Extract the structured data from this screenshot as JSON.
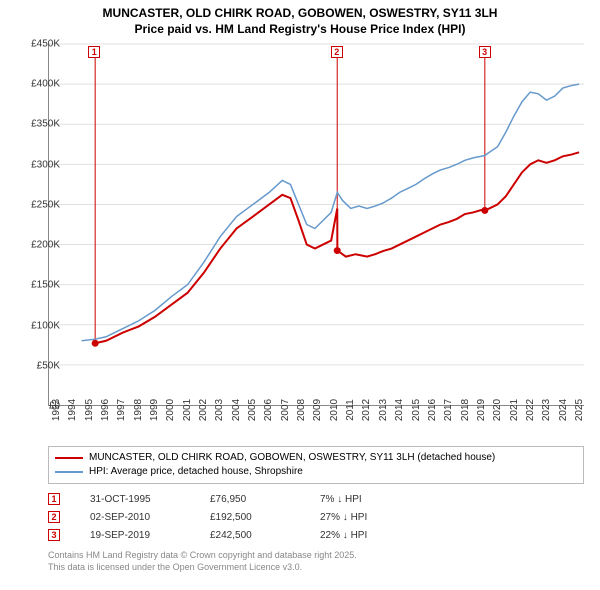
{
  "title": {
    "line1": "MUNCASTER, OLD CHIRK ROAD, GOBOWEN, OSWESTRY, SY11 3LH",
    "line2": "Price paid vs. HM Land Registry's House Price Index (HPI)"
  },
  "chart": {
    "type": "line",
    "background_color": "#ffffff",
    "grid_color": "#e0e0e0",
    "axis_color": "#888888",
    "x_years": [
      1993,
      1994,
      1995,
      1996,
      1997,
      1998,
      1999,
      2000,
      2001,
      2002,
      2003,
      2004,
      2005,
      2006,
      2007,
      2008,
      2009,
      2010,
      2011,
      2012,
      2013,
      2014,
      2015,
      2016,
      2017,
      2018,
      2019,
      2020,
      2021,
      2022,
      2023,
      2024,
      2025
    ],
    "xlim": [
      1993,
      2025.8
    ],
    "ylim": [
      0,
      450000
    ],
    "ytick_step": 50000,
    "ytick_labels": [
      "£0",
      "£50K",
      "£100K",
      "£150K",
      "£200K",
      "£250K",
      "£300K",
      "£350K",
      "£400K",
      "£450K"
    ],
    "title_fontsize": 12,
    "label_fontsize": 10,
    "series": {
      "price_paid": {
        "color": "#cc0000",
        "line_width": 2,
        "points": [
          [
            1995.83,
            76950
          ],
          [
            1996.5,
            80000
          ],
          [
            1997.5,
            90000
          ],
          [
            1998.5,
            98000
          ],
          [
            1999.5,
            110000
          ],
          [
            2000.5,
            125000
          ],
          [
            2001.5,
            140000
          ],
          [
            2002.5,
            165000
          ],
          [
            2003.5,
            195000
          ],
          [
            2004.5,
            220000
          ],
          [
            2005.5,
            235000
          ],
          [
            2006.5,
            250000
          ],
          [
            2007.3,
            262000
          ],
          [
            2007.8,
            258000
          ],
          [
            2008.3,
            230000
          ],
          [
            2008.8,
            200000
          ],
          [
            2009.3,
            195000
          ],
          [
            2009.8,
            200000
          ],
          [
            2010.3,
            205000
          ],
          [
            2010.67,
            245000
          ],
          [
            2010.68,
            192500
          ],
          [
            2011.2,
            185000
          ],
          [
            2011.8,
            188000
          ],
          [
            2012.5,
            185000
          ],
          [
            2013.0,
            188000
          ],
          [
            2013.5,
            192000
          ],
          [
            2014.0,
            195000
          ],
          [
            2014.5,
            200000
          ],
          [
            2015.0,
            205000
          ],
          [
            2015.5,
            210000
          ],
          [
            2016.0,
            215000
          ],
          [
            2016.5,
            220000
          ],
          [
            2017.0,
            225000
          ],
          [
            2017.5,
            228000
          ],
          [
            2018.0,
            232000
          ],
          [
            2018.5,
            238000
          ],
          [
            2019.0,
            240000
          ],
          [
            2019.5,
            243000
          ],
          [
            2019.72,
            242500
          ],
          [
            2020.0,
            245000
          ],
          [
            2020.5,
            250000
          ],
          [
            2021.0,
            260000
          ],
          [
            2021.5,
            275000
          ],
          [
            2022.0,
            290000
          ],
          [
            2022.5,
            300000
          ],
          [
            2023.0,
            305000
          ],
          [
            2023.5,
            302000
          ],
          [
            2024.0,
            305000
          ],
          [
            2024.5,
            310000
          ],
          [
            2025.0,
            312000
          ],
          [
            2025.5,
            315000
          ]
        ]
      },
      "hpi": {
        "color": "#6699cc",
        "line_width": 1.5,
        "points": [
          [
            1995.0,
            80000
          ],
          [
            1995.83,
            82000
          ],
          [
            1996.5,
            85000
          ],
          [
            1997.5,
            95000
          ],
          [
            1998.5,
            105000
          ],
          [
            1999.5,
            118000
          ],
          [
            2000.5,
            135000
          ],
          [
            2001.5,
            150000
          ],
          [
            2002.5,
            178000
          ],
          [
            2003.5,
            210000
          ],
          [
            2004.5,
            235000
          ],
          [
            2005.5,
            250000
          ],
          [
            2006.5,
            265000
          ],
          [
            2007.3,
            280000
          ],
          [
            2007.8,
            275000
          ],
          [
            2008.3,
            250000
          ],
          [
            2008.8,
            225000
          ],
          [
            2009.3,
            220000
          ],
          [
            2009.8,
            230000
          ],
          [
            2010.3,
            240000
          ],
          [
            2010.67,
            265000
          ],
          [
            2011.0,
            255000
          ],
          [
            2011.5,
            245000
          ],
          [
            2012.0,
            248000
          ],
          [
            2012.5,
            245000
          ],
          [
            2013.0,
            248000
          ],
          [
            2013.5,
            252000
          ],
          [
            2014.0,
            258000
          ],
          [
            2014.5,
            265000
          ],
          [
            2015.0,
            270000
          ],
          [
            2015.5,
            275000
          ],
          [
            2016.0,
            282000
          ],
          [
            2016.5,
            288000
          ],
          [
            2017.0,
            293000
          ],
          [
            2017.5,
            296000
          ],
          [
            2018.0,
            300000
          ],
          [
            2018.5,
            305000
          ],
          [
            2019.0,
            308000
          ],
          [
            2019.5,
            310000
          ],
          [
            2019.72,
            311000
          ],
          [
            2020.0,
            315000
          ],
          [
            2020.5,
            322000
          ],
          [
            2021.0,
            340000
          ],
          [
            2021.5,
            360000
          ],
          [
            2022.0,
            378000
          ],
          [
            2022.5,
            390000
          ],
          [
            2023.0,
            388000
          ],
          [
            2023.5,
            380000
          ],
          [
            2024.0,
            385000
          ],
          [
            2024.5,
            395000
          ],
          [
            2025.0,
            398000
          ],
          [
            2025.5,
            400000
          ]
        ]
      }
    },
    "markers": [
      {
        "id": "1",
        "x": 1995.83,
        "dot_y": 76950
      },
      {
        "id": "2",
        "x": 2010.67,
        "dot_y": 192500
      },
      {
        "id": "3",
        "x": 2019.72,
        "dot_y": 242500
      }
    ],
    "marker_dot_color": "#cc0000"
  },
  "legend": {
    "items": [
      {
        "color": "#cc0000",
        "label": "MUNCASTER, OLD CHIRK ROAD, GOBOWEN, OSWESTRY, SY11 3LH (detached house)"
      },
      {
        "color": "#6699cc",
        "label": "HPI: Average price, detached house, Shropshire"
      }
    ]
  },
  "events": [
    {
      "id": "1",
      "date": "31-OCT-1995",
      "price": "£76,950",
      "pct": "7% ↓ HPI"
    },
    {
      "id": "2",
      "date": "02-SEP-2010",
      "price": "£192,500",
      "pct": "27% ↓ HPI"
    },
    {
      "id": "3",
      "date": "19-SEP-2019",
      "price": "£242,500",
      "pct": "22% ↓ HPI"
    }
  ],
  "footer": {
    "line1": "Contains HM Land Registry data © Crown copyright and database right 2025.",
    "line2": "This data is licensed under the Open Government Licence v3.0."
  }
}
